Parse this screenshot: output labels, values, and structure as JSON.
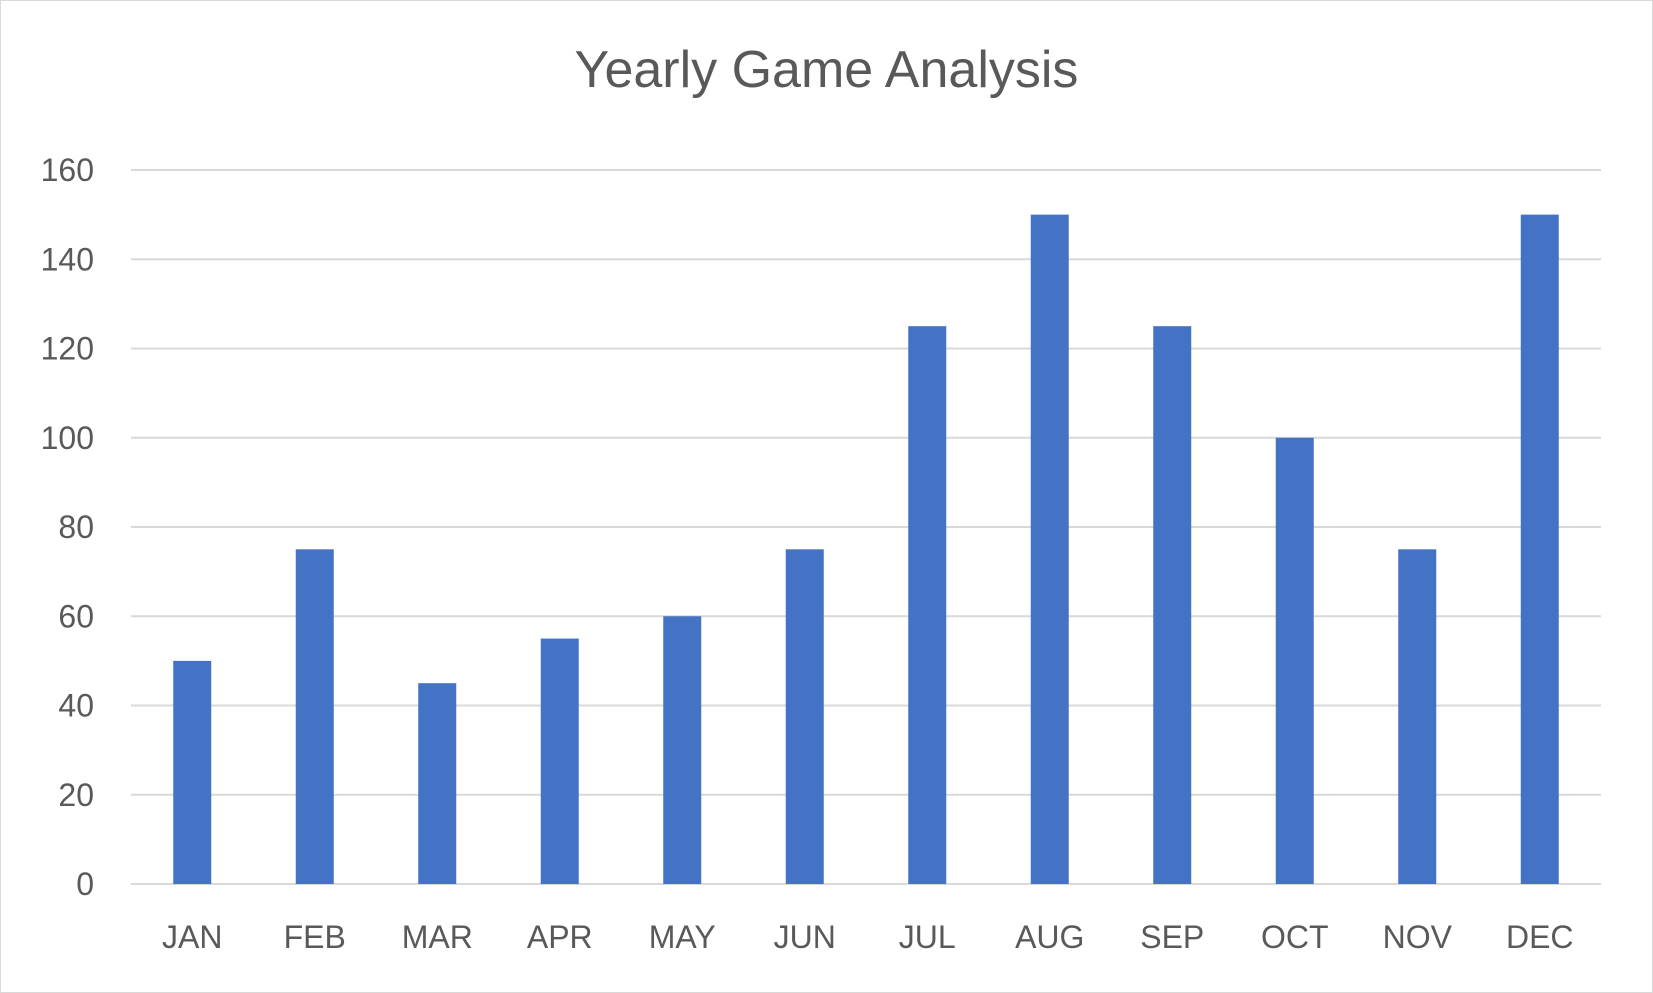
{
  "chart_data": {
    "type": "bar",
    "title": "Yearly Game Analysis",
    "xlabel": "",
    "ylabel": "",
    "categories": [
      "JAN",
      "FEB",
      "MAR",
      "APR",
      "MAY",
      "JUN",
      "JUL",
      "AUG",
      "SEP",
      "OCT",
      "NOV",
      "DEC"
    ],
    "values": [
      50,
      75,
      45,
      55,
      60,
      75,
      125,
      150,
      125,
      100,
      75,
      150
    ],
    "ylim": [
      0,
      160
    ],
    "yticks": [
      "0",
      "20",
      "40",
      "60",
      "80",
      "100",
      "120",
      "140",
      "160"
    ],
    "grid": true,
    "legend": "none",
    "colors": {
      "bar": "#4472c4",
      "grid": "#d9d9d9",
      "text": "#595959"
    }
  }
}
